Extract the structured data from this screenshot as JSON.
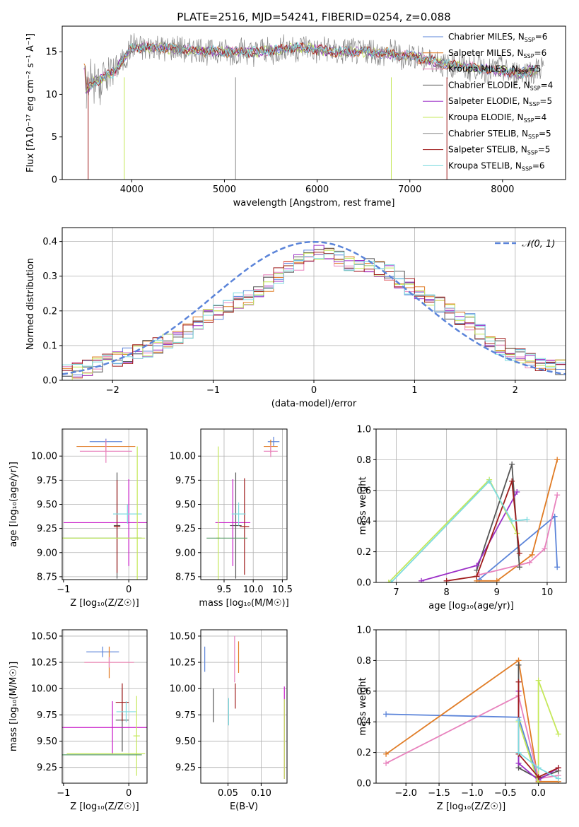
{
  "colors": {
    "blue": "#5b84d9",
    "orange": "#e07b24",
    "pink": "#e882bd",
    "darkgray": "#555555",
    "purple": "#9b2fc7",
    "yellowgreen": "#c5e85a",
    "gray": "#888888",
    "darkred": "#a01d1d",
    "cyan": "#7fdbe0",
    "magenta": "#c81ac8",
    "green": "#5a9e6a"
  },
  "chart_data": [
    {
      "type": "line",
      "title": "PLATE=2516, MJD=54241, FIBERID=0254, z=0.088",
      "xlabel": "wavelength [Angstrom, rest frame]",
      "ylabel": "Flux [fλ10⁻¹⁷ erg cm⁻² s⁻¹ A⁻¹]",
      "xlim": [
        3250,
        8680
      ],
      "ylim": [
        0,
        18
      ],
      "xticks": [
        4000,
        5000,
        6000,
        7000,
        8000
      ],
      "yticks": [
        0,
        5,
        10,
        15
      ],
      "grid": false,
      "legend_position": "right",
      "spectrum_anchor": {
        "x": [
          3500,
          3600,
          3800,
          4000,
          4300,
          4600,
          5000,
          5400,
          5800,
          6200,
          6600,
          7000,
          7400,
          7800,
          8200,
          8400
        ],
        "y": [
          10.5,
          11.5,
          12.5,
          15.5,
          15.5,
          15.2,
          15,
          15,
          15.5,
          15,
          15,
          14.5,
          13.5,
          13,
          12.5,
          13
        ]
      },
      "series": [
        {
          "name": "Chabrier MILES, N",
          "sub": "SSP",
          "suffix": "=6",
          "color": "blue"
        },
        {
          "name": "Salpeter MILES, N",
          "sub": "SSP",
          "suffix": "=6",
          "color": "orange"
        },
        {
          "name": "Kroupa MILES, N",
          "sub": "SSP",
          "suffix": "=5",
          "color": "pink"
        },
        {
          "name": "Chabrier ELODIE, N",
          "sub": "SSP",
          "suffix": "=4",
          "color": "darkgray"
        },
        {
          "name": "Salpeter ELODIE, N",
          "sub": "SSP",
          "suffix": "=5",
          "color": "purple"
        },
        {
          "name": "Kroupa ELODIE, N",
          "sub": "SSP",
          "suffix": "=4",
          "color": "yellowgreen"
        },
        {
          "name": "Chabrier STELIB, N",
          "sub": "SSP",
          "suffix": "=5",
          "color": "gray"
        },
        {
          "name": "Salpeter STELIB, N",
          "sub": "SSP",
          "suffix": "=5",
          "color": "darkred"
        },
        {
          "name": "Kroupa STELIB, N",
          "sub": "SSP",
          "suffix": "=6",
          "color": "cyan"
        }
      ]
    },
    {
      "type": "bar",
      "title": "",
      "xlabel": "(data-model)/error",
      "ylabel": "Normed distribution",
      "xlim": [
        -2.5,
        2.5
      ],
      "ylim": [
        0,
        0.44
      ],
      "xticks": [
        -2,
        -1,
        0,
        1,
        2
      ],
      "yticks": [
        0.0,
        0.1,
        0.2,
        0.3,
        0.4
      ],
      "grid": true,
      "legend_position": "top-right",
      "gaussian": {
        "name": "𝒩(0, 1)",
        "mean": 0,
        "sigma": 1,
        "color": "blue"
      },
      "histogram": {
        "bin_start": -2.5,
        "bin_width": 0.1,
        "n_bins": 50,
        "base": [
          0.02,
          0.03,
          0.035,
          0.045,
          0.055,
          0.06,
          0.07,
          0.08,
          0.09,
          0.1,
          0.11,
          0.12,
          0.14,
          0.16,
          0.19,
          0.2,
          0.21,
          0.23,
          0.24,
          0.26,
          0.28,
          0.3,
          0.32,
          0.34,
          0.36,
          0.37,
          0.36,
          0.35,
          0.34,
          0.33,
          0.33,
          0.32,
          0.31,
          0.29,
          0.27,
          0.26,
          0.24,
          0.22,
          0.2,
          0.18,
          0.17,
          0.14,
          0.12,
          0.1,
          0.08,
          0.07,
          0.06,
          0.05,
          0.045,
          0.04
        ]
      },
      "series": [
        "blue",
        "orange",
        "pink",
        "darkgray",
        "purple",
        "yellowgreen",
        "darkred",
        "cyan"
      ]
    },
    {
      "type": "scatter",
      "xlabel": "Z [log₁₀(Z/Z☉)]",
      "ylabel": "age  [log₁₀(age/yr)]",
      "xlim": [
        -1.02,
        0.28
      ],
      "ylim": [
        8.72,
        10.28
      ],
      "xticks": [
        -1,
        0
      ],
      "yticks": [
        8.75,
        9.0,
        9.25,
        9.5,
        9.75,
        10.0
      ],
      "grid": true,
      "points": [
        {
          "x": -0.35,
          "y": 10.15,
          "xe": 0.25,
          "ye": 0.03,
          "color": "blue"
        },
        {
          "x": -0.35,
          "y": 10.1,
          "xe": 0.45,
          "ye": 0.05,
          "color": "orange"
        },
        {
          "x": -0.35,
          "y": 10.05,
          "xe": 0.4,
          "ye": 0.12,
          "color": "pink"
        },
        {
          "x": -0.18,
          "y": 9.28,
          "xe": 0.05,
          "ye": 0.55,
          "color": "darkgray"
        },
        {
          "x": 0.0,
          "y": 9.31,
          "xe": 1.0,
          "ye": 0.45,
          "color": "magenta"
        },
        {
          "x": -0.18,
          "y": 9.27,
          "xe": 0.05,
          "ye": 0.48,
          "color": "darkred"
        },
        {
          "x": -0.02,
          "y": 9.4,
          "xe": 0.22,
          "ye": 0.1,
          "color": "cyan"
        },
        {
          "x": 0.13,
          "y": 9.15,
          "xe": 0.06,
          "ye": 0.95,
          "color": "yellowgreen"
        },
        {
          "x": -0.5,
          "y": 9.15,
          "xe": 0.7,
          "ye": 0.0,
          "color": "green"
        },
        {
          "x": -0.5,
          "y": 9.15,
          "xe": 0.75,
          "ye": 0.0,
          "color": "yellowgreen"
        }
      ]
    },
    {
      "type": "scatter",
      "xlabel": "mass [log₁₀(M/M☉)]",
      "ylabel": "",
      "xlim": [
        9.1,
        10.58
      ],
      "ylim": [
        8.72,
        10.28
      ],
      "xticks": [
        9.5,
        10.0,
        10.5
      ],
      "yticks": [
        8.75,
        9.0,
        9.25,
        9.5,
        9.75,
        10.0
      ],
      "grid": true,
      "points": [
        {
          "x": 10.35,
          "y": 10.15,
          "xe": 0.1,
          "ye": 0.05,
          "color": "blue"
        },
        {
          "x": 10.3,
          "y": 10.1,
          "xe": 0.12,
          "ye": 0.07,
          "color": "orange"
        },
        {
          "x": 10.3,
          "y": 10.05,
          "xe": 0.12,
          "ye": 0.06,
          "color": "pink"
        },
        {
          "x": 9.7,
          "y": 9.28,
          "xe": 0.1,
          "ye": 0.55,
          "color": "darkgray"
        },
        {
          "x": 9.65,
          "y": 9.31,
          "xe": 0.3,
          "ye": 0.45,
          "color": "magenta"
        },
        {
          "x": 9.85,
          "y": 9.27,
          "xe": 0.08,
          "ye": 0.5,
          "color": "darkred"
        },
        {
          "x": 9.75,
          "y": 9.4,
          "xe": 0.12,
          "ye": 0.12,
          "color": "cyan"
        },
        {
          "x": 9.4,
          "y": 9.15,
          "xe": 0.03,
          "ye": 0.95,
          "color": "yellowgreen"
        },
        {
          "x": 9.55,
          "y": 9.15,
          "xe": 0.35,
          "ye": 0.0,
          "color": "green"
        }
      ]
    },
    {
      "type": "line",
      "xlabel": "age  [log₁₀(age/yr)]",
      "ylabel": "mass weight",
      "xlim": [
        6.6,
        10.38
      ],
      "ylim": [
        0,
        1
      ],
      "xticks": [
        7,
        8,
        9,
        10
      ],
      "yticks": [
        0.0,
        0.2,
        0.4,
        0.6,
        0.8,
        1.0
      ],
      "grid": true,
      "series": [
        {
          "color": "blue",
          "x": [
            8.65,
            10.15,
            10.2
          ],
          "y": [
            0.02,
            0.43,
            0.1
          ]
        },
        {
          "color": "orange",
          "x": [
            8.6,
            9.0,
            9.7,
            10.2
          ],
          "y": [
            0.01,
            0.01,
            0.18,
            0.8
          ]
        },
        {
          "color": "pink",
          "x": [
            8.65,
            9.65,
            9.95,
            10.2
          ],
          "y": [
            0.05,
            0.13,
            0.22,
            0.57
          ]
        },
        {
          "color": "darkgray",
          "x": [
            8.6,
            9.3,
            9.45
          ],
          "y": [
            0.08,
            0.77,
            0.1
          ]
        },
        {
          "color": "purple",
          "x": [
            7.5,
            8.6,
            9.4
          ],
          "y": [
            0.01,
            0.11,
            0.59
          ]
        },
        {
          "color": "yellowgreen",
          "x": [
            6.85,
            8.85,
            9.4
          ],
          "y": [
            0.0,
            0.67,
            0.32
          ]
        },
        {
          "color": "darkred",
          "x": [
            8.0,
            8.6,
            9.3,
            9.45
          ],
          "y": [
            0.01,
            0.04,
            0.66,
            0.19
          ]
        },
        {
          "color": "cyan",
          "x": [
            6.9,
            8.85,
            9.3,
            9.6
          ],
          "y": [
            0.0,
            0.66,
            0.4,
            0.41
          ]
        }
      ]
    },
    {
      "type": "scatter",
      "xlabel": "Z [log₁₀(Z/Z☉)]",
      "ylabel": "mass [log₁₀(M/M☉)]",
      "xlim": [
        -1.02,
        0.28
      ],
      "ylim": [
        9.1,
        10.56
      ],
      "xticks": [
        -1,
        0
      ],
      "yticks": [
        9.25,
        9.5,
        9.75,
        10.0,
        10.25,
        10.5
      ],
      "grid": true,
      "points": [
        {
          "x": -0.4,
          "y": 10.35,
          "xe": 0.25,
          "ye": 0.05,
          "color": "blue"
        },
        {
          "x": -0.3,
          "y": 10.25,
          "xe": 0.38,
          "ye": 0.15,
          "color": "orange"
        },
        {
          "x": -0.3,
          "y": 10.25,
          "xe": 0.38,
          "ye": 0.05,
          "color": "pink"
        },
        {
          "x": -0.1,
          "y": 9.7,
          "xe": 0.1,
          "ye": 0.3,
          "color": "darkgray"
        },
        {
          "x": -0.25,
          "y": 9.63,
          "xe": 1.0,
          "ye": 0.25,
          "color": "magenta"
        },
        {
          "x": -0.1,
          "y": 9.87,
          "xe": 0.1,
          "ye": 0.18,
          "color": "darkred"
        },
        {
          "x": -0.04,
          "y": 9.78,
          "xe": 0.15,
          "ye": 0.1,
          "color": "cyan"
        },
        {
          "x": 0.12,
          "y": 9.55,
          "xe": 0.05,
          "ye": 0.38,
          "color": "yellowgreen"
        },
        {
          "x": -0.5,
          "y": 9.37,
          "xe": 0.7,
          "ye": 0.0,
          "color": "green"
        },
        {
          "x": -0.35,
          "y": 9.38,
          "xe": 0.6,
          "ye": 0.0,
          "color": "yellowgreen"
        }
      ]
    },
    {
      "type": "scatter",
      "xlabel": "E(B-V)",
      "ylabel": "",
      "xlim": [
        0.009,
        0.139
      ],
      "ylim": [
        9.1,
        10.56
      ],
      "xticks": [
        0.05,
        0.1
      ],
      "yticks": [
        9.25,
        9.5,
        9.75,
        10.0,
        10.25,
        10.5
      ],
      "grid": true,
      "points": [
        {
          "x": 0.015,
          "y": 10.28,
          "xe": 0,
          "ye": 0.12,
          "color": "blue"
        },
        {
          "x": 0.066,
          "y": 10.3,
          "xe": 0,
          "ye": 0.15,
          "color": "orange"
        },
        {
          "x": 0.06,
          "y": 10.28,
          "xe": 0,
          "ye": 0.22,
          "color": "pink"
        },
        {
          "x": 0.028,
          "y": 9.84,
          "xe": 0,
          "ye": 0.16,
          "color": "darkgray"
        },
        {
          "x": 0.061,
          "y": 9.93,
          "xe": 0,
          "ye": 0.12,
          "color": "darkred"
        },
        {
          "x": 0.051,
          "y": 9.78,
          "xe": 0,
          "ye": 0.13,
          "color": "cyan"
        },
        {
          "x": 0.135,
          "y": 9.58,
          "xe": 0,
          "ye": 0.44,
          "color": "magenta"
        },
        {
          "x": 0.135,
          "y": 9.52,
          "xe": 0,
          "ye": 0.38,
          "color": "yellowgreen"
        }
      ]
    },
    {
      "type": "line",
      "xlabel": "Z [log₁₀(Z/Z☉)]",
      "ylabel": "mass weight",
      "xlim": [
        -2.45,
        0.42
      ],
      "ylim": [
        0,
        1
      ],
      "xticks": [
        -2.0,
        -1.5,
        -1.0,
        -0.5,
        0.0
      ],
      "yticks": [
        0.0,
        0.2,
        0.4,
        0.6,
        0.8,
        1.0
      ],
      "grid": true,
      "series": [
        {
          "color": "blue",
          "x": [
            -2.3,
            -0.3,
            0.0
          ],
          "y": [
            0.45,
            0.43,
            0.02
          ]
        },
        {
          "color": "orange",
          "x": [
            -2.3,
            -0.3,
            0.0,
            0.3
          ],
          "y": [
            0.19,
            0.8,
            0.01,
            0.01
          ]
        },
        {
          "color": "pink",
          "x": [
            -2.3,
            -0.3,
            0.0,
            0.3
          ],
          "y": [
            0.13,
            0.57,
            0.03,
            0.05
          ]
        },
        {
          "color": "darkgray",
          "x": [
            -0.3,
            -0.3,
            0.0,
            0.3
          ],
          "y": [
            0.77,
            0.1,
            0.03,
            0.08
          ]
        },
        {
          "color": "purple",
          "x": [
            -0.3,
            -0.3,
            0.0,
            0.3
          ],
          "y": [
            0.6,
            0.13,
            0.02,
            0.1
          ]
        },
        {
          "color": "yellowgreen",
          "x": [
            -0.3,
            0.0,
            0.0,
            0.3
          ],
          "y": [
            0.4,
            0.0,
            0.67,
            0.32
          ]
        },
        {
          "color": "darkred",
          "x": [
            -0.3,
            -0.3,
            0.0,
            0.3
          ],
          "y": [
            0.66,
            0.19,
            0.04,
            0.1
          ]
        },
        {
          "color": "cyan",
          "x": [
            -0.3,
            -0.3,
            0.0,
            0.3
          ],
          "y": [
            0.41,
            0.2,
            0.1,
            0.03
          ]
        }
      ]
    }
  ]
}
